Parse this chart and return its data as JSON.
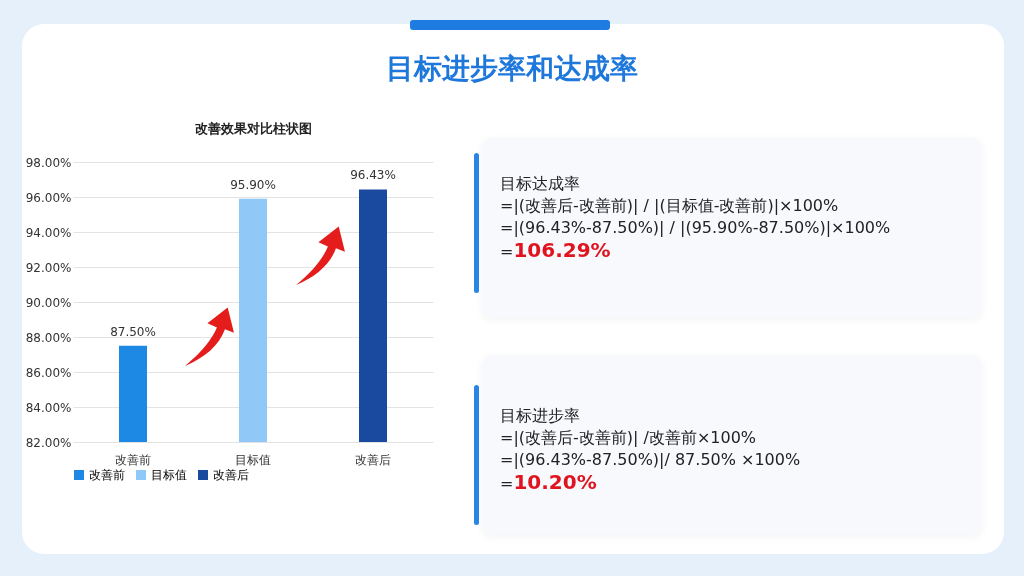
{
  "chart_data": [
    {
      "type": "other",
      "title": "目标进步率和达成率"
    },
    {
      "type": "bar",
      "title": "改善效果对比柱状图",
      "categories": [
        "改善前",
        "目标值",
        "改善后"
      ],
      "series": [
        {
          "name": "改善前",
          "color": "#1e88e5",
          "values": [
            87.5,
            null,
            null
          ],
          "value_labels": [
            "87.50%",
            null,
            null
          ]
        },
        {
          "name": "目标值",
          "color": "#90c8f8",
          "values": [
            null,
            95.9,
            null
          ],
          "value_labels": [
            null,
            "95.90%",
            null
          ]
        },
        {
          "name": "改善后",
          "color": "#1a4aa0",
          "values": [
            null,
            null,
            96.43
          ],
          "value_labels": [
            null,
            null,
            "96.43%"
          ]
        }
      ],
      "ylim": [
        82,
        98
      ],
      "yticks": [
        {
          "value": 82,
          "label": "82.00%"
        },
        {
          "value": 84,
          "label": "84.00%"
        },
        {
          "value": 86,
          "label": "86.00%"
        },
        {
          "value": 88,
          "label": "88.00%"
        },
        {
          "value": 90,
          "label": "90.00%"
        },
        {
          "value": 92,
          "label": "92.00%"
        },
        {
          "value": 94,
          "label": "94.00%"
        },
        {
          "value": 96,
          "label": "96.00%"
        },
        {
          "value": 98,
          "label": "98.00%"
        }
      ],
      "grid": "y",
      "legend": "bottom"
    },
    {
      "type": "other",
      "title": "目标达成率",
      "annotations": [
        "=|(改善后-改善前)| / |(目标值-改善前)|×100%",
        "=|(96.43%-87.50%)| / |(95.90%-87.50%)|×100%",
        "=106.29%"
      ]
    },
    {
      "type": "other",
      "title": "目标进步率",
      "annotations": [
        "=|(改善后-改善前)| /改善前×100%",
        "=|(96.43%-87.50%)|/ 87.50% ×100%",
        "=10.20%"
      ]
    }
  ]
}
